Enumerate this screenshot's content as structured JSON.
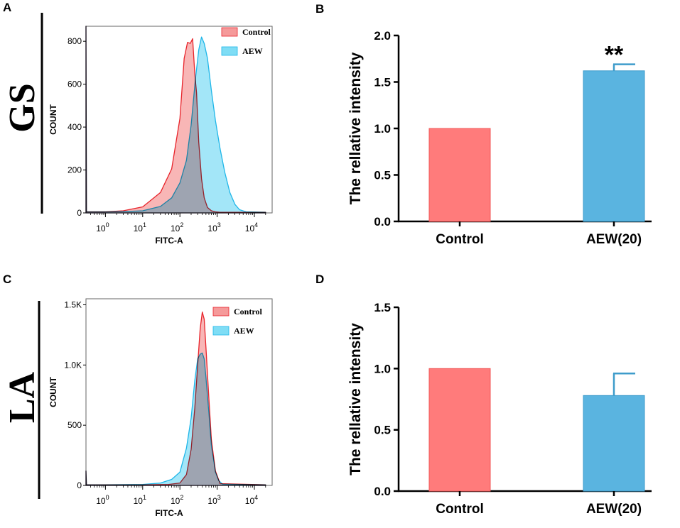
{
  "colors": {
    "control": "#FF7B7B",
    "aew": "#5AB4E0",
    "control_fill": "#F59A9A",
    "aew_fill": "#7FDDF5",
    "control_line": "#E8242B",
    "aew_line": "#1FB6E8"
  },
  "panels": {
    "A": {
      "letter": "A",
      "group": "GS"
    },
    "B": {
      "letter": "B"
    },
    "C": {
      "letter": "C",
      "group": "LA"
    },
    "D": {
      "letter": "D"
    }
  },
  "chart_data": [
    {
      "id": "A",
      "type": "area",
      "title": "",
      "xlabel": "FITC-A",
      "ylabel": "COUNT",
      "x_scale": "log10",
      "xlim": [
        0.3,
        30000
      ],
      "ylim": [
        0,
        870
      ],
      "y_ticks": [
        "0",
        "200",
        "400",
        "600",
        "800"
      ],
      "y_tick_values": [
        0,
        200,
        400,
        600,
        800
      ],
      "x_ticks": [
        {
          "base": "10",
          "exp": "0"
        },
        {
          "base": "10",
          "exp": "1"
        },
        {
          "base": "10",
          "exp": "2"
        },
        {
          "base": "10",
          "exp": "3"
        },
        {
          "base": "10",
          "exp": "4"
        }
      ],
      "legend": {
        "position": "top-right",
        "entries": [
          "Control",
          "AEW"
        ]
      },
      "series": [
        {
          "name": "Control",
          "x": [
            0.3,
            0.31,
            0.4,
            1,
            3,
            10,
            30,
            60,
            100,
            130,
            160,
            190,
            220,
            250,
            280,
            320,
            380,
            450,
            550,
            700,
            900,
            1200,
            20000
          ],
          "y": [
            880,
            5,
            5,
            5,
            10,
            28,
            95,
            205,
            440,
            720,
            795,
            790,
            812,
            650,
            560,
            330,
            160,
            70,
            25,
            10,
            5,
            3,
            3
          ]
        },
        {
          "name": "AEW",
          "x": [
            0.3,
            0.31,
            0.4,
            1,
            3,
            10,
            30,
            60,
            100,
            150,
            200,
            260,
            320,
            380,
            450,
            550,
            700,
            900,
            1200,
            1600,
            2200,
            3000,
            4000,
            6000,
            20000
          ],
          "y": [
            880,
            5,
            5,
            5,
            6,
            10,
            30,
            70,
            140,
            245,
            410,
            620,
            760,
            820,
            790,
            720,
            570,
            430,
            300,
            190,
            95,
            40,
            15,
            5,
            3
          ]
        }
      ]
    },
    {
      "id": "B",
      "type": "bar",
      "title": "",
      "xlabel": "",
      "ylabel": "The rellative intensity",
      "categories": [
        "Control",
        "AEW(20)"
      ],
      "values": [
        1.0,
        1.62
      ],
      "errors": [
        0,
        0.07
      ],
      "significance": [
        "",
        "**"
      ],
      "ylim": [
        0,
        2.0
      ],
      "y_ticks": [
        "0.0",
        "0.5",
        "1.0",
        "1.5",
        "2.0"
      ],
      "y_tick_values": [
        0,
        0.5,
        1.0,
        1.5,
        2.0
      ]
    },
    {
      "id": "C",
      "type": "area",
      "title": "",
      "xlabel": "FITC-A",
      "ylabel": "COUNT",
      "x_scale": "log10",
      "xlim": [
        0.3,
        30000
      ],
      "ylim": [
        0,
        1550
      ],
      "y_ticks": [
        "0",
        "500",
        "1.0K",
        "1.5K"
      ],
      "y_tick_values": [
        0,
        500,
        1000,
        1500
      ],
      "x_ticks": [
        {
          "base": "10",
          "exp": "0"
        },
        {
          "base": "10",
          "exp": "1"
        },
        {
          "base": "10",
          "exp": "2"
        },
        {
          "base": "10",
          "exp": "3"
        },
        {
          "base": "10",
          "exp": "4"
        }
      ],
      "legend": {
        "position": "top-right",
        "entries": [
          "Control",
          "AEW"
        ]
      },
      "series": [
        {
          "name": "Control",
          "x": [
            0.3,
            0.31,
            0.4,
            1,
            10,
            50,
            100,
            150,
            200,
            250,
            300,
            350,
            400,
            450,
            500,
            600,
            700,
            900,
            1200,
            20000
          ],
          "y": [
            120,
            5,
            5,
            5,
            5,
            8,
            20,
            90,
            300,
            640,
            1000,
            1300,
            1440,
            1380,
            1150,
            720,
            380,
            120,
            15,
            5
          ]
        },
        {
          "name": "AEW",
          "x": [
            0.3,
            0.31,
            0.4,
            1,
            10,
            30,
            60,
            100,
            150,
            200,
            250,
            300,
            350,
            400,
            450,
            500,
            600,
            700,
            900,
            1100,
            1400,
            20000
          ],
          "y": [
            120,
            5,
            5,
            5,
            8,
            20,
            50,
            110,
            310,
            560,
            870,
            1050,
            1090,
            1100,
            1050,
            900,
            600,
            330,
            110,
            40,
            10,
            5
          ]
        }
      ]
    },
    {
      "id": "D",
      "type": "bar",
      "title": "",
      "xlabel": "",
      "ylabel": "The rellative intensity",
      "categories": [
        "Control",
        "AEW(20)"
      ],
      "values": [
        1.0,
        0.78
      ],
      "errors": [
        0,
        0.18
      ],
      "significance": [
        "",
        ""
      ],
      "ylim": [
        0,
        1.5
      ],
      "y_ticks": [
        "0.0",
        "0.5",
        "1.0",
        "1.5"
      ],
      "y_tick_values": [
        0,
        0.5,
        1.0,
        1.5
      ]
    }
  ]
}
